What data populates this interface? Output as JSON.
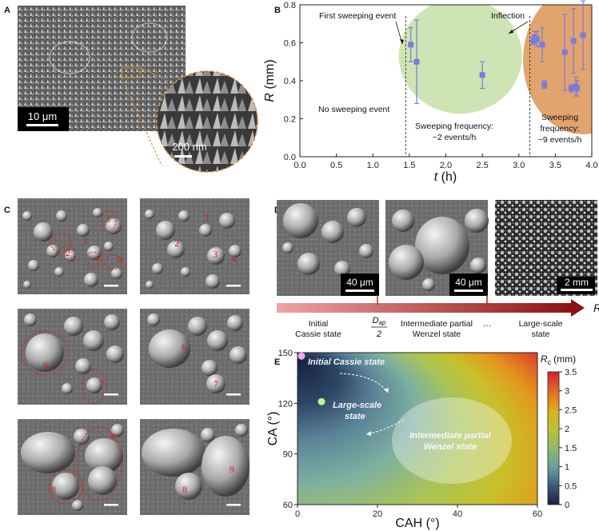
{
  "panels": {
    "A": "A",
    "B": "B",
    "C": "C",
    "D": "D",
    "E": "E"
  },
  "panelA": {
    "scalebar_main": "10 μm",
    "scalebar_inset": "200 nm"
  },
  "panelB": {
    "chart_data": {
      "type": "scatter",
      "xlabel": "t (h)",
      "ylabel": "R (mm)",
      "xlim": [
        0,
        4
      ],
      "ylim": [
        0,
        0.8
      ],
      "xticks": [
        "0.0",
        "0.5",
        "1.0",
        "1.5",
        "2.0",
        "2.5",
        "3.0",
        "3.5",
        "4.0"
      ],
      "yticks": [
        "0.0",
        "0.2",
        "0.4",
        "0.6",
        "0.8"
      ],
      "points": [
        {
          "x": 1.52,
          "y": 0.59,
          "err": 0.09
        },
        {
          "x": 1.6,
          "y": 0.5,
          "err": 0.22
        },
        {
          "x": 2.5,
          "y": 0.43,
          "err": 0.07
        },
        {
          "x": 3.2,
          "y": 0.61,
          "err": 0.02
        },
        {
          "x": 3.22,
          "y": 0.63,
          "err": 0.03
        },
        {
          "x": 3.25,
          "y": 0.62,
          "err": 0.04
        },
        {
          "x": 3.32,
          "y": 0.59,
          "err": 0.09
        },
        {
          "x": 3.35,
          "y": 0.38,
          "err": 0.02
        },
        {
          "x": 3.63,
          "y": 0.55,
          "err": 0.2
        },
        {
          "x": 3.72,
          "y": 0.36,
          "err": 0.02
        },
        {
          "x": 3.75,
          "y": 0.61,
          "err": 0.17
        },
        {
          "x": 3.78,
          "y": 0.37,
          "err": 0.05
        },
        {
          "x": 3.8,
          "y": 0.36,
          "err": 0.04
        },
        {
          "x": 3.88,
          "y": 0.64,
          "err": 0.18
        }
      ],
      "vlines": [
        1.45,
        3.15
      ],
      "annotations": {
        "first": "First sweeping event",
        "inflection": "Inflection",
        "none": "No sweeping event",
        "freq1_l1": "Sweeping frequency:",
        "freq1_l2": "~2 events/h",
        "freq2_l1": "Sweeping",
        "freq2_l2": "frequency:",
        "freq2_l3": "~9 events/h"
      },
      "colors": {
        "marker": "#7b7bd6",
        "green": "#cfe4b4",
        "orange": "#e2a46f"
      }
    }
  },
  "panelC": {
    "labels": [
      "1",
      "2",
      "3",
      "4",
      "5",
      "6",
      "7",
      "8",
      "9"
    ]
  },
  "panelD": {
    "scalebars": [
      "40 μm",
      "40 μm",
      "2 mm"
    ],
    "arrow_label": "R",
    "states": {
      "s1_l1": "Initial",
      "s1_l2": "Cassie state",
      "dap_num": "D",
      "dap_sub": "ap",
      "dap_den": "2",
      "s2_l1": "Intermediate partial",
      "s2_l2": "Wenzel state",
      "dots": "…",
      "s3_l1": "Large-scale",
      "s3_l2": "state"
    }
  },
  "panelE": {
    "chart_data": {
      "type": "heatmap",
      "xlabel": "CAH (°)",
      "ylabel": "CA (°)",
      "xlim": [
        0,
        60
      ],
      "ylim": [
        60,
        150
      ],
      "xticks": [
        "0",
        "20",
        "40",
        "60"
      ],
      "yticks": [
        "60",
        "90",
        "120",
        "150"
      ],
      "colorbar_label": "Rc (mm)",
      "colorbar_label_main": "R",
      "colorbar_label_sub": "c",
      "colorbar_label_unit": "(mm)",
      "colorbar_range": [
        0,
        3.5
      ],
      "colorbar_ticks": [
        "0",
        "0.5",
        "1",
        "1.5",
        "2",
        "2.5",
        "3",
        "3.5"
      ],
      "annotations": {
        "cassie": "Initial Cassie state",
        "large_l1": "Large-scale",
        "large_l2": "state",
        "inter_l1": "Intermediate partial",
        "inter_l2": "Wenzel state"
      },
      "markers": [
        {
          "name": "Initial Cassie state",
          "x": 1,
          "y": 148,
          "color": "#f2a9f0"
        },
        {
          "name": "Large-scale state",
          "x": 6,
          "y": 121,
          "color": "#b6f59a"
        }
      ]
    }
  }
}
